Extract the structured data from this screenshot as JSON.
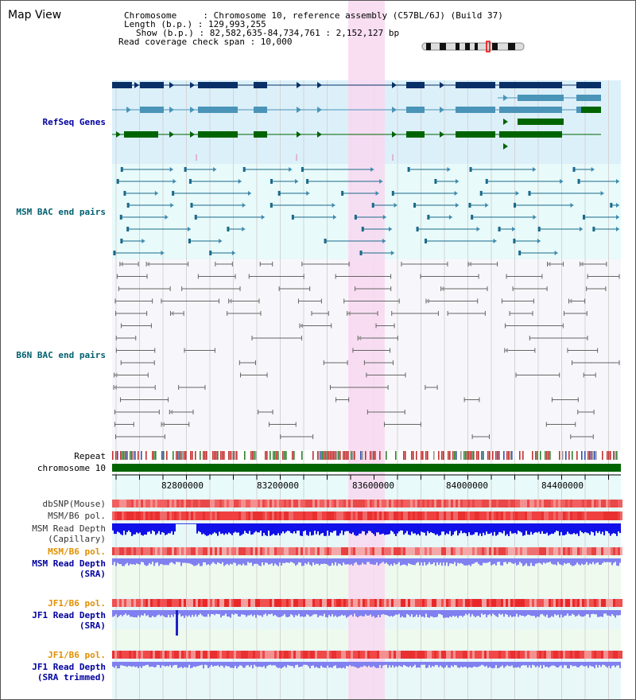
{
  "page": {
    "title": "Map View"
  },
  "info": {
    "line1": "Chromosome     : Chromosome 10, reference assembly (C57BL/6J) (Build 37)",
    "line2": "Length (b.p.) : 129,993,255",
    "line3": "Show (b.p.) : 82,582,635-84,734,761 : 2,152,127 bp",
    "line4": "Read coverage check span : 10,000"
  },
  "tracks": {
    "refseq": "RefSeq Genes",
    "msm_bac": "MSM BAC end pairs",
    "b6n_bac": "B6N BAC end pairs",
    "repeat": "Repeat",
    "chromosome": "chromosome 10",
    "dbsnp": "dbSNP(Mouse)",
    "msm_b6_pol_1": "MSM/B6 pol.",
    "msm_read_depth_cap_1": "MSM Read Depth",
    "msm_read_depth_cap_2": "(Capillary)",
    "msm_b6_pol_2": "MSM/B6 pol.",
    "msm_read_depth_sra_1": "MSM Read Depth",
    "msm_read_depth_sra_2": "(SRA)",
    "jf1_b6_pol_1": "JF1/B6 pol.",
    "jf1_read_depth_sra_1": "JF1 Read Depth",
    "jf1_read_depth_sra_2": "(SRA)",
    "jf1_b6_pol_2": "JF1/B6 pol.",
    "jf1_read_depth_trim_1": "JF1 Read Depth",
    "jf1_read_depth_trim_2": "(SRA trimmed)"
  },
  "axis": {
    "ticks": [
      "82800000",
      "83200000",
      "83600000",
      "84000000",
      "84400000"
    ]
  },
  "colors": {
    "highlight": "#f8d8f0",
    "refseq_bg": "#dcf0fa",
    "bac_bg": "#e8fafa",
    "gene_dark": "#0a3068",
    "gene_mid": "#4a94b8",
    "gene_green": "#006400",
    "chromosome": "#006400",
    "depth_blue": "#1010e8",
    "depth_light": "#8080f0",
    "pol_red": "#e83030",
    "pol_label": "#e09000",
    "label_blue": "#0000a0",
    "label_teal": "#006070"
  }
}
